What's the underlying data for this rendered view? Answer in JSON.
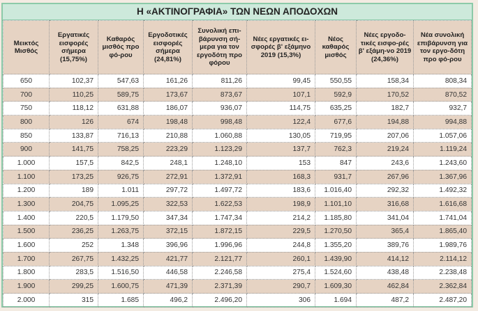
{
  "title": "Η «ΑΚΤΙΝΟΓΡΑΦΙΑ» ΤΩΝ ΝΕΩΝ ΑΠΟΔΟΧΩΝ",
  "columns": [
    "Μεικτός Μισθός",
    "Εργατικές εισφορές σήμερα (15,75%)",
    "Καθαρός μισθός προ φό-ρου",
    "Εργοδοτικές εισφορές σήμερα (24,81%)",
    "Συνολική επι-βάρυνση σή-μερα για τον εργοδότη προ φόρου",
    "Νέες εργατικές ει-σφορές β' εξάμηνο 2019 (15,3%)",
    "Νέος καθαρός μισθός",
    "Νέες εργοδο-τικές εισφο-ρές β' εξάμη-νο 2019 (24,36%)",
    "Νέα συνολική επιβάρυνση για τον εργο-δότη προ φό-ρου"
  ],
  "rows": [
    [
      "650",
      "102,37",
      "547,63",
      "161,26",
      "811,26",
      "99,45",
      "550,55",
      "158,34",
      "808,34"
    ],
    [
      "700",
      "110,25",
      "589,75",
      "173,67",
      "873,67",
      "107,1",
      "592,9",
      "170,52",
      "870,52"
    ],
    [
      "750",
      "118,12",
      "631,88",
      "186,07",
      "936,07",
      "114,75",
      "635,25",
      "182,7",
      "932,7"
    ],
    [
      "800",
      "126",
      "674",
      "198,48",
      "998,48",
      "122,4",
      "677,6",
      "194,88",
      "994,88"
    ],
    [
      "850",
      "133,87",
      "716,13",
      "210,88",
      "1.060,88",
      "130,05",
      "719,95",
      "207,06",
      "1.057,06"
    ],
    [
      "900",
      "141,75",
      "758,25",
      "223,29",
      "1.123,29",
      "137,7",
      "762,3",
      "219,24",
      "1.119,24"
    ],
    [
      "1.000",
      "157,5",
      "842,5",
      "248,1",
      "1.248,10",
      "153",
      "847",
      "243,6",
      "1.243,60"
    ],
    [
      "1.100",
      "173,25",
      "926,75",
      "272,91",
      "1.372,91",
      "168,3",
      "931,7",
      "267,96",
      "1.367,96"
    ],
    [
      "1.200",
      "189",
      "1.011",
      "297,72",
      "1.497,72",
      "183,6",
      "1.016,40",
      "292,32",
      "1.492,32"
    ],
    [
      "1.300",
      "204,75",
      "1.095,25",
      "322,53",
      "1.622,53",
      "198,9",
      "1.101,10",
      "316,68",
      "1.616,68"
    ],
    [
      "1.400",
      "220,5",
      "1.179,50",
      "347,34",
      "1.747,34",
      "214,2",
      "1.185,80",
      "341,04",
      "1.741,04"
    ],
    [
      "1.500",
      "236,25",
      "1.263,75",
      "372,15",
      "1.872,15",
      "229,5",
      "1.270,50",
      "365,4",
      "1.865,40"
    ],
    [
      "1.600",
      "252",
      "1.348",
      "396,96",
      "1.996,96",
      "244,8",
      "1.355,20",
      "389,76",
      "1.989,76"
    ],
    [
      "1.700",
      "267,75",
      "1.432,25",
      "421,77",
      "2.121,77",
      "260,1",
      "1.439,90",
      "414,12",
      "2.114,12"
    ],
    [
      "1.800",
      "283,5",
      "1.516,50",
      "446,58",
      "2.246,58",
      "275,4",
      "1.524,60",
      "438,48",
      "2.238,48"
    ],
    [
      "1.900",
      "299,25",
      "1.600,75",
      "471,39",
      "2.371,39",
      "290,7",
      "1.609,30",
      "462,84",
      "2.362,84"
    ],
    [
      "2.000",
      "315",
      "1.685",
      "496,2",
      "2.496,20",
      "306",
      "1.694",
      "487,2",
      "2.487,20"
    ]
  ]
}
